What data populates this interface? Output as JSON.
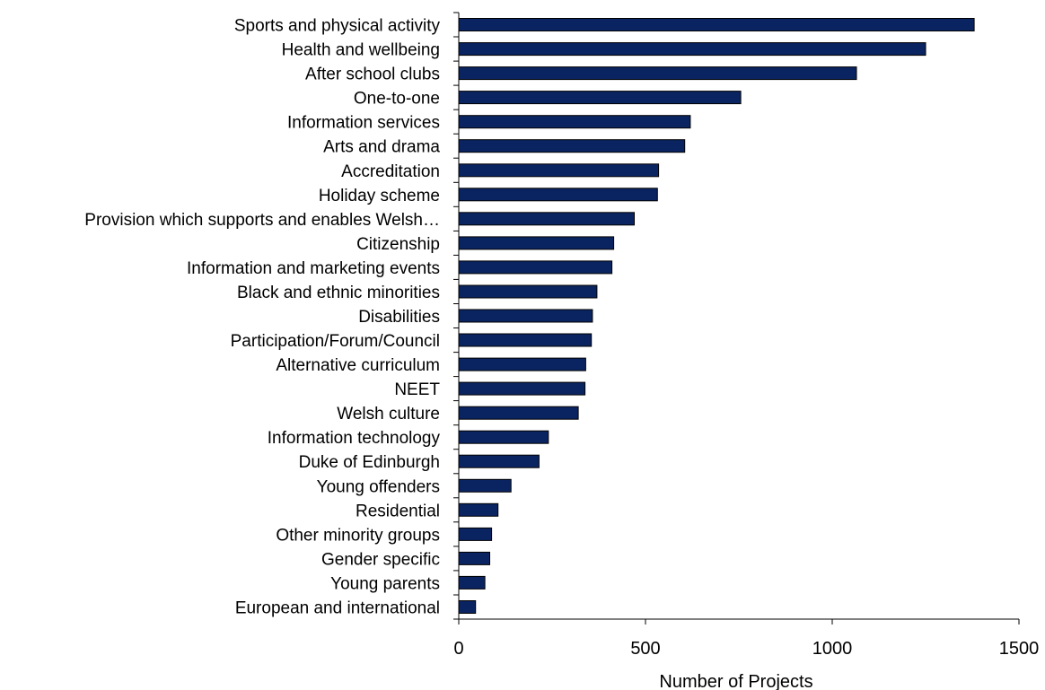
{
  "chart_data": {
    "type": "bar",
    "orientation": "horizontal",
    "title": "",
    "xlabel": "Number of Projects",
    "ylabel": "",
    "xlim": [
      0,
      1500
    ],
    "xticks": [
      "0",
      "500",
      "1000",
      "1500"
    ],
    "grid": false,
    "bar_color": "#0a2461",
    "categories": [
      "Sports and physical activity",
      "Health and wellbeing",
      "After school clubs",
      "One-to-one",
      "Information services",
      "Arts and drama",
      "Accreditation",
      "Holiday scheme",
      "Provision which supports and enables Welsh…",
      "Citizenship",
      "Information and marketing events",
      "Black and ethnic minorities",
      "Disabilities",
      "Participation/Forum/Council",
      "Alternative curriculum",
      "NEET",
      "Welsh culture",
      "Information technology",
      "Duke of Edinburgh",
      "Young offenders",
      "Residential",
      "Other minority groups",
      "Gender specific",
      "Young parents",
      "European and international"
    ],
    "values": [
      1380,
      1250,
      1065,
      755,
      620,
      605,
      535,
      532,
      470,
      415,
      410,
      370,
      358,
      355,
      340,
      338,
      320,
      240,
      215,
      140,
      105,
      88,
      83,
      70,
      45
    ]
  }
}
